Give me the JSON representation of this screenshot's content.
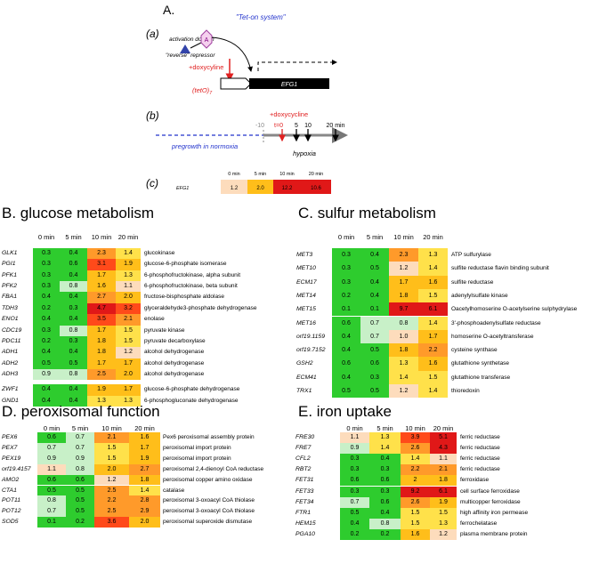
{
  "figure_label": "A.",
  "panel_a": {
    "label": "(a)",
    "system": "\"Tet-on system\"",
    "activation": "activation domain",
    "domain_letter": "A",
    "repressor": "\"reverse\" repressor",
    "inducer": "+doxycyline",
    "promoter": "(tetO)",
    "promoter_subscript": "7",
    "gene": "EFG1"
  },
  "panel_b": {
    "label": "(b)",
    "inducer": "+doxycycline",
    "times": [
      "-10",
      "t=0",
      "5",
      "10",
      "20 min"
    ],
    "pregrowth": "pregrowth in normoxia",
    "condition": "hypoxia"
  },
  "panel_c": {
    "label": "(c)",
    "columns": [
      "0 min",
      "5 min",
      "10 min",
      "20 min"
    ],
    "gene": "EFG1",
    "values": [
      "1.2",
      "2.0",
      "12.2",
      "10.6"
    ]
  },
  "sections": [
    {
      "title": "B. glucose metabolism",
      "columns": [
        "0 min",
        "5 min",
        "10 min",
        "20 min"
      ],
      "groups": [
        {
          "rows": [
            {
              "gene": "GLK1",
              "values": [
                "0.3",
                "0.4",
                "2.3",
                "1.4"
              ],
              "description": "glucokinase"
            },
            {
              "gene": "PGI1",
              "values": [
                "0.3",
                "0.6",
                "3.1",
                "1.9"
              ],
              "description": "glucose-6-phosphate isomerase"
            },
            {
              "gene": "PFK1",
              "values": [
                "0.3",
                "0.4",
                "1.7",
                "1.3"
              ],
              "description": "6-phosphofructokinase, alpha subunit"
            },
            {
              "gene": "PFK2",
              "values": [
                "0.3",
                "0.8",
                "1.6",
                "1.1"
              ],
              "description": "6-phosphofructokinase, beta subunit"
            },
            {
              "gene": "FBA1",
              "values": [
                "0.4",
                "0.4",
                "2.7",
                "2.0"
              ],
              "description": "fructose-bisphosphate aldolase"
            },
            {
              "gene": "TDH3",
              "values": [
                "0.2",
                "0.3",
                "4.7",
                "3.2"
              ],
              "description": "glyceraldehyde3-phosphate dehydrogenase"
            },
            {
              "gene": "ENO1",
              "values": [
                "0.4",
                "0.4",
                "3.5",
                "2.1"
              ],
              "description": "enolase"
            },
            {
              "gene": "CDC19",
              "values": [
                "0.3",
                "0.8",
                "1.7",
                "1.5"
              ],
              "description": "pyruvate kinase"
            },
            {
              "gene": "PDC11",
              "values": [
                "0.2",
                "0.3",
                "1.8",
                "1.5"
              ],
              "description": "pyruvate decarboxylase"
            },
            {
              "gene": "ADH1",
              "values": [
                "0.4",
                "0.4",
                "1.8",
                "1.2"
              ],
              "description": "alcohol dehydrogenase"
            },
            {
              "gene": "ADH2",
              "values": [
                "0.5",
                "0.5",
                "1.7",
                "1.7"
              ],
              "description": "alcohol dehydrogenase"
            },
            {
              "gene": "ADH3",
              "values": [
                "0.9",
                "0.8",
                "2.5",
                "2.0"
              ],
              "description": "alcohol dehydrogenase"
            }
          ]
        },
        {
          "rows": [
            {
              "gene": "ZWF1",
              "values": [
                "0.4",
                "0.4",
                "1.9",
                "1.7"
              ],
              "description": "glucose-6-phosphate dehydrogenase"
            },
            {
              "gene": "GND1",
              "values": [
                "0.4",
                "0.4",
                "1.3",
                "1.3"
              ],
              "description": "6-phosphogluconate dehydrogenase"
            }
          ]
        }
      ]
    },
    {
      "title": "C. sulfur metabolism",
      "columns": [
        "0 min",
        "5 min",
        "10 min",
        "20 min"
      ],
      "groups": [
        {
          "rows": [
            {
              "gene": "MET3",
              "values": [
                "0.3",
                "0.4",
                "2.3",
                "1.3"
              ],
              "description": "ATP sulfurylase"
            },
            {
              "gene": "MET10",
              "values": [
                "0.3",
                "0.5",
                "1.2",
                "1.4"
              ],
              "description": "sulfite reductase flavin binding subunit"
            },
            {
              "gene": "ECM17",
              "values": [
                "0.3",
                "0.4",
                "1.7",
                "1.6"
              ],
              "description": "sulfite reductase"
            },
            {
              "gene": "MET14",
              "values": [
                "0.2",
                "0.4",
                "1.8",
                "1.5"
              ],
              "description": "adenylylsulfate kinase"
            },
            {
              "gene": "MET15",
              "values": [
                "0.1",
                "0.1",
                "9.7",
                "6.1"
              ],
              "description": "Oacetylhomoserine O-acetylserine sulphydrylase"
            },
            {
              "gene": "MET16",
              "values": [
                "0.6",
                "0.7",
                "0.8",
                "1.4"
              ],
              "description": "3'-phosphoadenylsulfate reductase"
            },
            {
              "gene": "orf19.1159",
              "values": [
                "0.4",
                "0.7",
                "1.0",
                "1.7"
              ],
              "description": "homoserine O-acetyltransferase"
            },
            {
              "gene": "orf19.7152",
              "values": [
                "0.4",
                "0.5",
                "1.8",
                "2.2"
              ],
              "description": "cysteine synthase"
            },
            {
              "gene": "GSH2",
              "values": [
                "0.6",
                "0.6",
                "1.3",
                "1.6"
              ],
              "description": "glutathione synthetase"
            },
            {
              "gene": "ECM41",
              "values": [
                "0.4",
                "0.3",
                "1.4",
                "1.5"
              ],
              "description": "glutathione transferase"
            },
            {
              "gene": "TRX1",
              "values": [
                "0.5",
                "0.5",
                "1.2",
                "1.4"
              ],
              "description": "thioredoxin"
            }
          ]
        }
      ]
    },
    {
      "title": "D. peroxisomal function",
      "columns": [
        "0 min",
        "5 min",
        "10 min",
        "20 min"
      ],
      "groups": [
        {
          "rows": [
            {
              "gene": "PEX6",
              "values": [
                "0.6",
                "0.7",
                "2.1",
                "1.6"
              ],
              "description": "Pex6 peroxisomal assembly protein"
            },
            {
              "gene": "PEX7",
              "values": [
                "0.7",
                "0.7",
                "1.5",
                "1.7"
              ],
              "description": "peroxisomal import protein"
            },
            {
              "gene": "PEX19",
              "values": [
                "0.9",
                "0.9",
                "1.5",
                "1.9"
              ],
              "description": "peroxisomal import protein"
            },
            {
              "gene": "orf19.4157",
              "values": [
                "1.1",
                "0.8",
                "2.0",
                "2.7"
              ],
              "description": "peroxisomal 2,4-dienoyl CoA reductase"
            },
            {
              "gene": "AMO2",
              "values": [
                "0.6",
                "0.6",
                "1.2",
                "1.8"
              ],
              "description": "peroxisomal copper amino oxidase"
            },
            {
              "gene": "CTA1",
              "values": [
                "0.5",
                "0.5",
                "2.5",
                "1.4"
              ],
              "description": "catalase"
            },
            {
              "gene": "POT11",
              "values": [
                "0.8",
                "0.5",
                "2.2",
                "2.8"
              ],
              "description": "peroxisomal 3-oxoacyl CoA thiolase"
            },
            {
              "gene": "POT12",
              "values": [
                "0.7",
                "0.5",
                "2.5",
                "2.9"
              ],
              "description": "peroxisomal 3-oxoacyl CoA thiolase"
            },
            {
              "gene": "SOD5",
              "values": [
                "0.1",
                "0.2",
                "3.6",
                "2.0"
              ],
              "description": "peroxisomal superoxide dismutase"
            }
          ]
        }
      ]
    },
    {
      "title": "E. iron uptake",
      "columns": [
        "0 min",
        "5 min",
        "10 min",
        "20 min"
      ],
      "groups": [
        {
          "rows": [
            {
              "gene": "FRE30",
              "values": [
                "1.1",
                "1.3",
                "3.9",
                "5.1"
              ],
              "description": "ferric reductase"
            },
            {
              "gene": "FRE7",
              "values": [
                "0.9",
                "1.4",
                "2.6",
                "4.3"
              ],
              "description": "ferric reductase"
            },
            {
              "gene": "CFL2",
              "values": [
                "0.3",
                "0.4",
                "1.4",
                "1.1"
              ],
              "description": "ferric reductase"
            },
            {
              "gene": "RBT2",
              "values": [
                "0.3",
                "0.3",
                "2.2",
                "2.1"
              ],
              "description": "ferric reductase"
            },
            {
              "gene": "FET31",
              "values": [
                "0.6",
                "0.6",
                "2",
                "1.8"
              ],
              "description": "ferroxidase"
            },
            {
              "gene": "FET33",
              "values": [
                "0.3",
                "0.3",
                "9.2",
                "6.1"
              ],
              "description": "cell surface ferroxidase"
            },
            {
              "gene": "FET34",
              "values": [
                "0.7",
                "0.6",
                "2.6",
                "1.9"
              ],
              "description": "multicopper ferroxidase"
            },
            {
              "gene": "FTR1",
              "values": [
                "0.5",
                "0.4",
                "1.5",
                "1.5"
              ],
              "description": "high affinity iron permease"
            },
            {
              "gene": "HEM15",
              "values": [
                "0.4",
                "0.8",
                "1.5",
                "1.3"
              ],
              "description": "ferrochelatase"
            },
            {
              "gene": "PGA10",
              "values": [
                "0.2",
                "0.2",
                "1.6",
                "1.2"
              ],
              "description": "plasma membrane protein"
            }
          ]
        }
      ]
    }
  ]
}
